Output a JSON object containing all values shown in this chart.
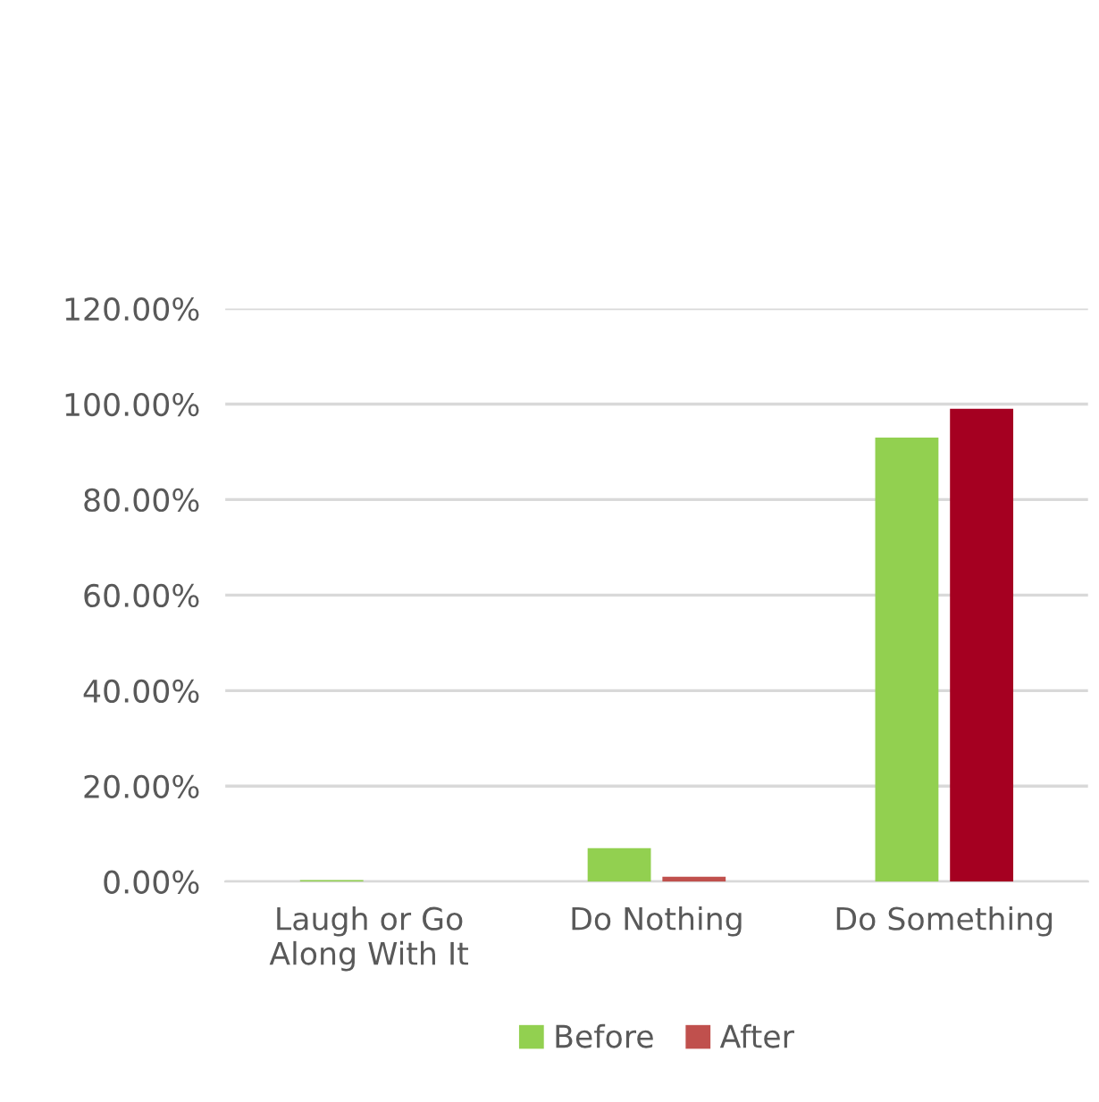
{
  "chart_data": {
    "type": "bar",
    "categories": [
      "Laugh or Go\nAlong With It",
      "Do Nothing",
      "Do Something"
    ],
    "series": [
      {
        "name": "Before",
        "color": "#92d050",
        "values": [
          0.3,
          7,
          93
        ]
      },
      {
        "name": "After",
        "color": "#c0504d",
        "colors": [
          "#c0504d",
          "#c0504d",
          "#a50021"
        ],
        "values": [
          0,
          1,
          99
        ]
      }
    ],
    "ylim": [
      0,
      120
    ],
    "yticks": [
      {
        "value": 0,
        "label": "0.00%"
      },
      {
        "value": 20,
        "label": "20.00%"
      },
      {
        "value": 40,
        "label": "40.00%"
      },
      {
        "value": 60,
        "label": "60.00%"
      },
      {
        "value": 80,
        "label": "80.00%"
      },
      {
        "value": 100,
        "label": "100.00%"
      },
      {
        "value": 120,
        "label": "120.00%"
      }
    ],
    "grid": "y",
    "legend": "bottom"
  }
}
